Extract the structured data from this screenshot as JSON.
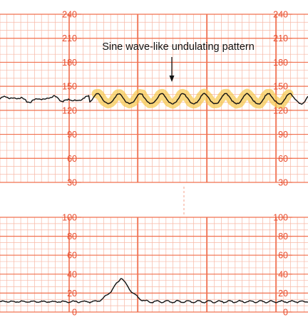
{
  "colors": {
    "grid_major": "#f0704f",
    "grid_minor": "#f7b8a6",
    "tick_label": "#e84a2a",
    "trace": "#111111",
    "highlight": "#f5c84c",
    "annotation": "#111111"
  },
  "chart_data": [
    {
      "type": "line",
      "panel": "fetal-heart-rate",
      "title": "",
      "xlabel": "",
      "ylabel": "",
      "ylim": [
        30,
        240
      ],
      "y_ticks": [
        "30",
        "60",
        "90",
        "120",
        "150",
        "180",
        "210",
        "240"
      ],
      "grid": true,
      "annotation": {
        "text": "Sine wave-like undulating pattern",
        "arrow": true,
        "highlighted_segment": true
      },
      "description_of_trace": {
        "baseline": 134,
        "amplitude": 7,
        "undulation_cycles_in_highlight": 9
      }
    },
    {
      "type": "line",
      "panel": "uterine-activity",
      "title": "",
      "xlabel": "",
      "ylabel": "",
      "ylim": [
        0,
        100
      ],
      "y_ticks": [
        "0",
        "20",
        "40",
        "60",
        "80",
        "100"
      ],
      "grid": true,
      "description_of_trace": {
        "baseline": 11,
        "contraction_peak": 37
      }
    }
  ]
}
